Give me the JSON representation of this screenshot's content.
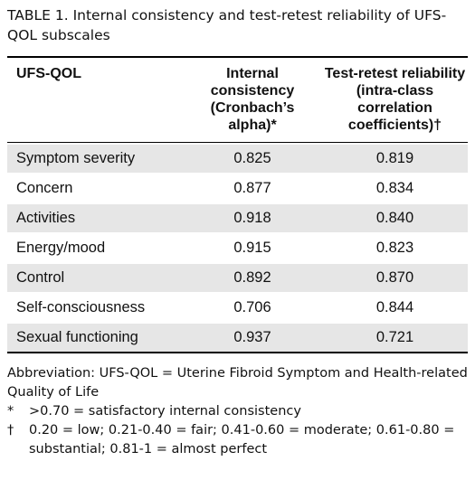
{
  "header": {
    "title": "TABLE 1. Internal consistency and test-retest reliability of UFS-QOL subscales"
  },
  "table": {
    "columns": [
      "UFS-QOL",
      "Internal consistency (Cronbach’s alpha)*",
      "Test-retest reliability (intra-class correlation coefficients)†"
    ],
    "rows": [
      [
        "Symptom severity",
        "0.825",
        "0.819"
      ],
      [
        "Concern",
        "0.877",
        "0.834"
      ],
      [
        "Activities",
        "0.918",
        "0.840"
      ],
      [
        "Energy/mood",
        "0.915",
        "0.823"
      ],
      [
        "Control",
        "0.892",
        "0.870"
      ],
      [
        "Self-consciousness",
        "0.706",
        "0.844"
      ],
      [
        "Sexual functioning",
        "0.937",
        "0.721"
      ]
    ]
  },
  "footnotes": {
    "abbreviation": "Abbreviation: UFS-QOL = Uterine Fibroid Symptom and Health-related Quality of Life",
    "notes": [
      {
        "symbol": "*",
        "text": ">0.70 = satisfactory internal consistency"
      },
      {
        "symbol": "†",
        "text": "0.20 = low; 0.21-0.40 = fair; 0.41-0.60 = moderate; 0.61-0.80 = substantial; 0.81-1 = almost perfect"
      }
    ]
  }
}
